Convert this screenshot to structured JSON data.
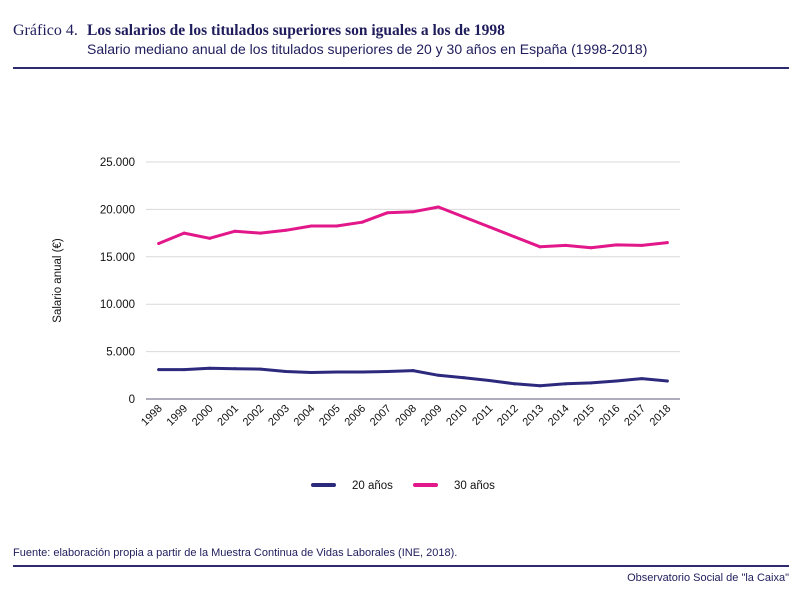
{
  "figure_label": "Gráfico 4.",
  "source": "Fuente: elaboración propia a partir de la Muestra Continua de Vidas Laborales (INE, 2018).",
  "organization": "Observatorio Social de \"la Caixa\"",
  "chart_data": {
    "type": "line",
    "title": "Los salarios de los titulados superiores son iguales a los de 1998",
    "subtitle": "Salario mediano anual de los titulados superiores de 20 y 30 años en España (1998-2018)",
    "xlabel": "",
    "ylabel": "Salario anual (€)",
    "ylim": [
      0,
      25000
    ],
    "yticks": [
      0,
      5000,
      10000,
      15000,
      20000,
      25000
    ],
    "ytick_labels": [
      "0",
      "5.000",
      "10.000",
      "15.000",
      "20.000",
      "25.000"
    ],
    "grid": true,
    "legend_position": "bottom",
    "categories": [
      "1998",
      "1999",
      "2000",
      "2001",
      "2002",
      "2003",
      "2004",
      "2005",
      "2006",
      "2007",
      "2008",
      "2009",
      "2010",
      "2011",
      "2012",
      "2013",
      "2014",
      "2015",
      "2016",
      "2017",
      "2018"
    ],
    "series": [
      {
        "name": "20 años",
        "color": "#2d2a7e",
        "values": [
          3100,
          3100,
          3250,
          3200,
          3150,
          2900,
          2800,
          2850,
          2850,
          2900,
          3000,
          2500,
          2250,
          1950,
          1600,
          1400,
          1600,
          1700,
          1900,
          2150,
          1900
        ]
      },
      {
        "name": "30 años",
        "color": "#e2178a",
        "values": [
          16400,
          17500,
          16950,
          17700,
          17500,
          17800,
          18250,
          18250,
          18650,
          19650,
          19750,
          20250,
          19200,
          18150,
          17100,
          16050,
          16200,
          15950,
          16250,
          16200,
          16500
        ]
      }
    ]
  }
}
